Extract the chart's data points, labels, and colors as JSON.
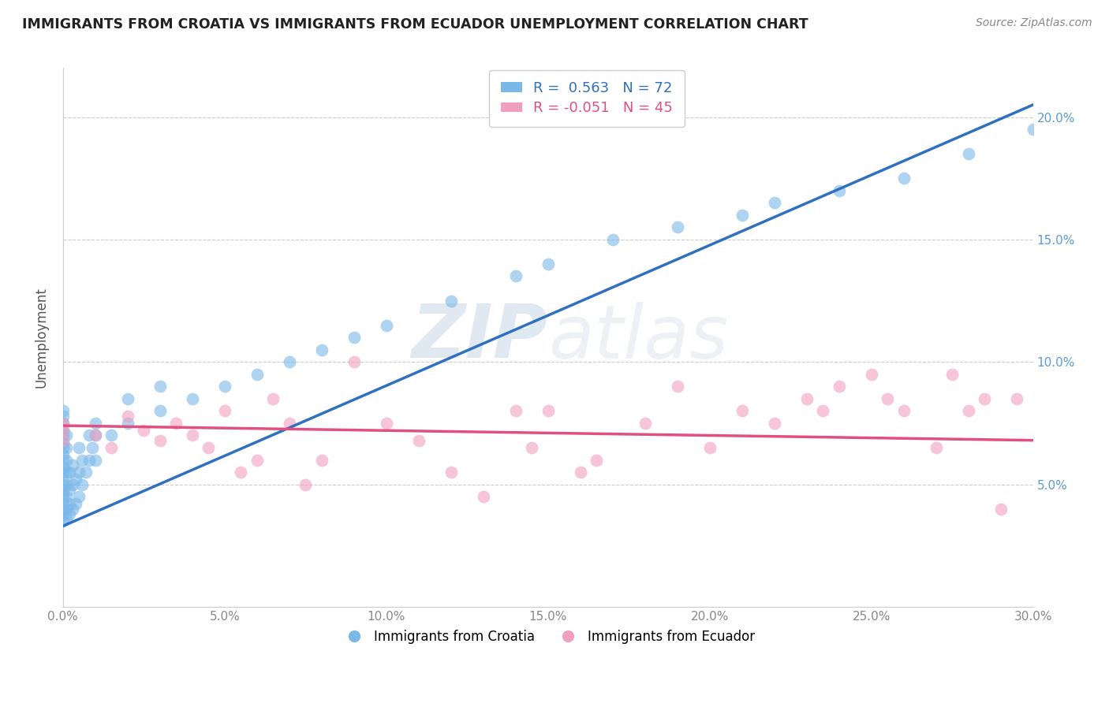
{
  "title": "IMMIGRANTS FROM CROATIA VS IMMIGRANTS FROM ECUADOR UNEMPLOYMENT CORRELATION CHART",
  "source": "Source: ZipAtlas.com",
  "ylabel": "Unemployment",
  "xlim": [
    0.0,
    0.3
  ],
  "ylim": [
    0.0,
    0.22
  ],
  "xtick_vals": [
    0.0,
    0.05,
    0.1,
    0.15,
    0.2,
    0.25,
    0.3
  ],
  "ytick_vals": [
    0.05,
    0.1,
    0.15,
    0.2
  ],
  "ytick_labels_right": [
    "5.0%",
    "10.0%",
    "15.0%",
    "20.0%"
  ],
  "xtick_labels": [
    "0.0%",
    "5.0%",
    "10.0%",
    "15.0%",
    "20.0%",
    "25.0%",
    "30.0%"
  ],
  "r_croatia": 0.563,
  "n_croatia": 72,
  "r_ecuador": -0.051,
  "n_ecuador": 45,
  "croatia_color": "#7ab8e8",
  "ecuador_color": "#f0a0be",
  "croatia_line_color": "#3070c0",
  "ecuador_line_color": "#e05080",
  "watermark_zip": "ZIP",
  "watermark_atlas": "atlas",
  "background_color": "#ffffff",
  "croatia_x": [
    0.0,
    0.0,
    0.0,
    0.0,
    0.0,
    0.0,
    0.0,
    0.0,
    0.0,
    0.0,
    0.0,
    0.0,
    0.0,
    0.0,
    0.0,
    0.0,
    0.0,
    0.0,
    0.0,
    0.0,
    0.001,
    0.001,
    0.001,
    0.001,
    0.001,
    0.001,
    0.001,
    0.001,
    0.002,
    0.002,
    0.002,
    0.002,
    0.003,
    0.003,
    0.003,
    0.004,
    0.004,
    0.005,
    0.005,
    0.005,
    0.006,
    0.006,
    0.007,
    0.008,
    0.008,
    0.009,
    0.01,
    0.01,
    0.01,
    0.015,
    0.02,
    0.02,
    0.03,
    0.03,
    0.04,
    0.05,
    0.06,
    0.07,
    0.08,
    0.09,
    0.1,
    0.12,
    0.14,
    0.15,
    0.17,
    0.19,
    0.21,
    0.22,
    0.24,
    0.26,
    0.28,
    0.3
  ],
  "croatia_y": [
    0.035,
    0.038,
    0.04,
    0.042,
    0.044,
    0.046,
    0.048,
    0.05,
    0.052,
    0.055,
    0.057,
    0.06,
    0.062,
    0.065,
    0.067,
    0.07,
    0.072,
    0.075,
    0.078,
    0.08,
    0.036,
    0.04,
    0.045,
    0.05,
    0.055,
    0.06,
    0.065,
    0.07,
    0.038,
    0.042,
    0.048,
    0.055,
    0.04,
    0.05,
    0.058,
    0.042,
    0.052,
    0.045,
    0.055,
    0.065,
    0.05,
    0.06,
    0.055,
    0.06,
    0.07,
    0.065,
    0.06,
    0.07,
    0.075,
    0.07,
    0.075,
    0.085,
    0.08,
    0.09,
    0.085,
    0.09,
    0.095,
    0.1,
    0.105,
    0.11,
    0.115,
    0.125,
    0.135,
    0.14,
    0.15,
    0.155,
    0.16,
    0.165,
    0.17,
    0.175,
    0.185,
    0.195
  ],
  "ecuador_x": [
    0.0,
    0.0,
    0.0,
    0.01,
    0.015,
    0.02,
    0.025,
    0.03,
    0.035,
    0.04,
    0.045,
    0.05,
    0.055,
    0.06,
    0.065,
    0.07,
    0.075,
    0.08,
    0.09,
    0.1,
    0.11,
    0.12,
    0.13,
    0.14,
    0.145,
    0.15,
    0.16,
    0.165,
    0.18,
    0.19,
    0.2,
    0.21,
    0.22,
    0.23,
    0.235,
    0.24,
    0.25,
    0.255,
    0.26,
    0.27,
    0.275,
    0.28,
    0.285,
    0.29,
    0.295
  ],
  "ecuador_y": [
    0.072,
    0.075,
    0.068,
    0.07,
    0.065,
    0.078,
    0.072,
    0.068,
    0.075,
    0.07,
    0.065,
    0.08,
    0.055,
    0.06,
    0.085,
    0.075,
    0.05,
    0.06,
    0.1,
    0.075,
    0.068,
    0.055,
    0.045,
    0.08,
    0.065,
    0.08,
    0.055,
    0.06,
    0.075,
    0.09,
    0.065,
    0.08,
    0.075,
    0.085,
    0.08,
    0.09,
    0.095,
    0.085,
    0.08,
    0.065,
    0.095,
    0.08,
    0.085,
    0.04,
    0.085
  ],
  "blue_line_x0": 0.0,
  "blue_line_y0": 0.033,
  "blue_line_x1": 0.3,
  "blue_line_y1": 0.205,
  "pink_line_x0": 0.0,
  "pink_line_y0": 0.074,
  "pink_line_x1": 0.3,
  "pink_line_y1": 0.068
}
